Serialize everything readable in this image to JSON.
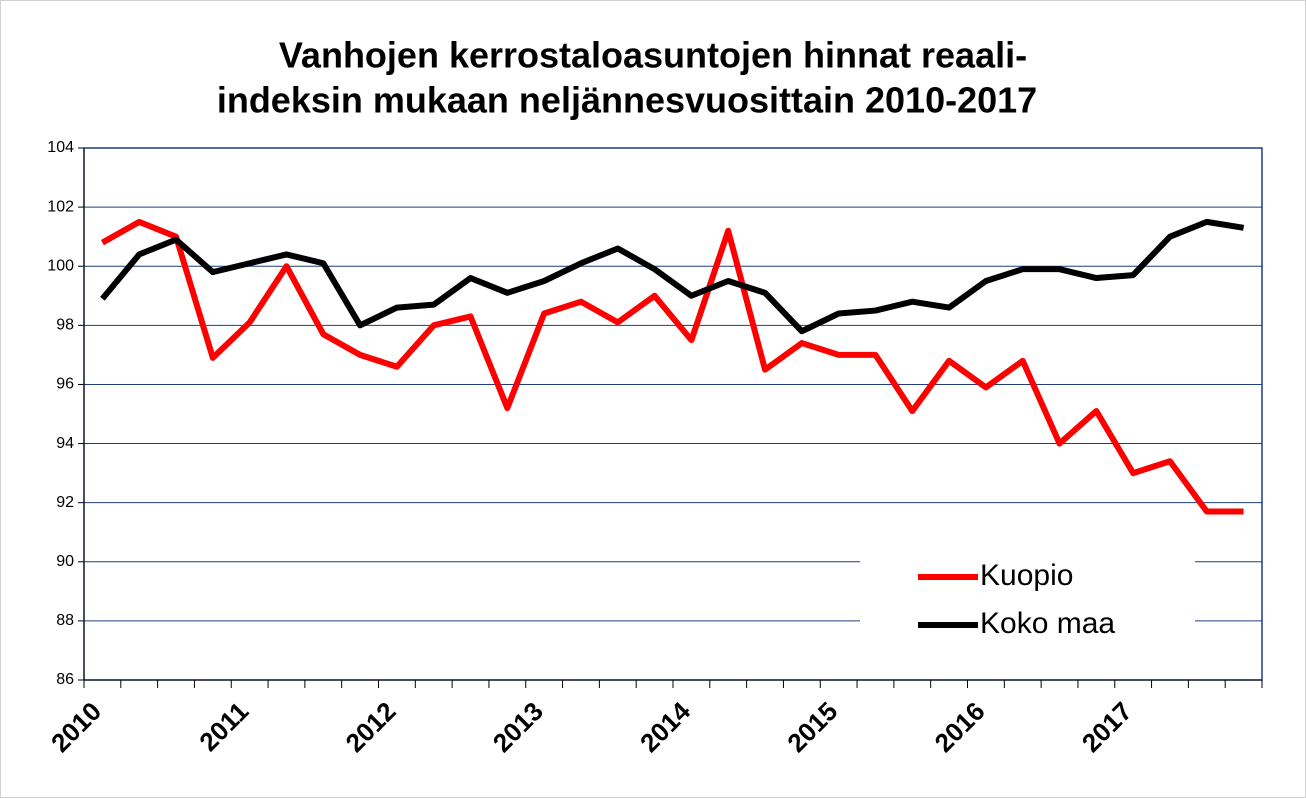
{
  "chart_data": {
    "type": "line",
    "title": [
      "Vanhojen kerrostaloasuntojen hinnat reaali-",
      "indeksin mukaan neljännesvuosittain 2010-2017"
    ],
    "categories": [
      "2010",
      null,
      null,
      null,
      "2011",
      null,
      null,
      null,
      "2012",
      null,
      null,
      null,
      "2013",
      null,
      null,
      null,
      "2014",
      null,
      null,
      null,
      "2015",
      null,
      null,
      null,
      "2016",
      null,
      null,
      null,
      "2017",
      null,
      null,
      null
    ],
    "series": [
      {
        "name": "Kuopio",
        "color": "#ff0000",
        "values": [
          100.8,
          101.5,
          101.0,
          96.9,
          98.1,
          100.0,
          97.7,
          97.0,
          96.6,
          98.0,
          98.3,
          95.2,
          98.4,
          98.8,
          98.1,
          99.0,
          97.5,
          101.2,
          96.5,
          97.4,
          97.0,
          97.0,
          95.1,
          96.8,
          95.9,
          96.8,
          94.0,
          95.1,
          93.0,
          93.4,
          91.7,
          91.7
        ]
      },
      {
        "name": "Koko maa",
        "color": "#000000",
        "values": [
          98.9,
          100.4,
          100.9,
          99.8,
          100.1,
          100.4,
          100.1,
          98.0,
          98.6,
          98.7,
          99.6,
          99.1,
          99.5,
          100.1,
          100.6,
          99.9,
          99.0,
          99.5,
          99.1,
          97.8,
          98.4,
          98.5,
          98.8,
          98.6,
          99.5,
          99.9,
          99.9,
          99.6,
          99.7,
          101.0,
          101.5,
          101.3
        ]
      }
    ],
    "ylim": [
      86,
      104
    ],
    "yticks": [
      86,
      88,
      90,
      92,
      94,
      96,
      98,
      100,
      102,
      104
    ],
    "grid": true,
    "legend": "lower right"
  }
}
